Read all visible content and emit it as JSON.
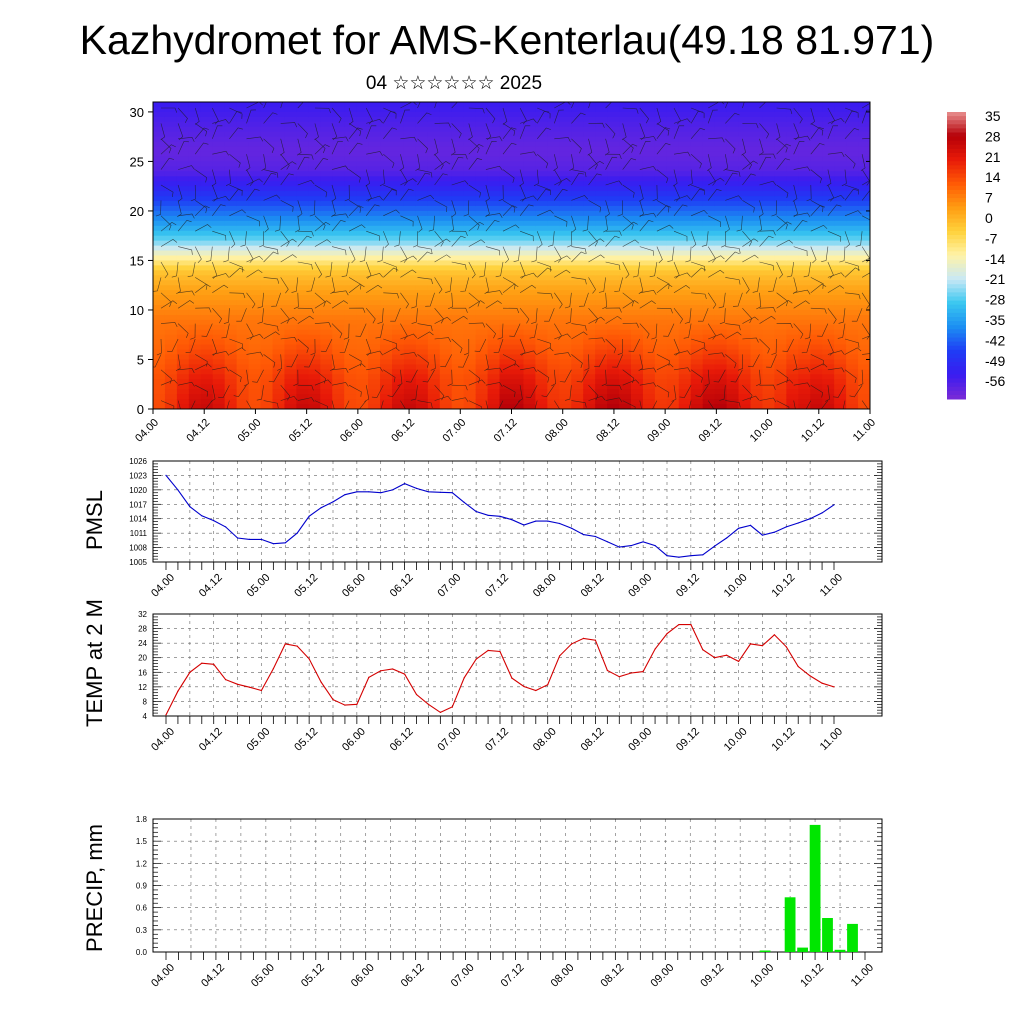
{
  "header": {
    "title": "Kazhydromet for AMS-Kenterlau(49.18 81.971)",
    "subtitle": "04 ☆☆☆☆☆☆ 2025"
  },
  "chart_data": [
    {
      "type": "heatmap",
      "name": "cross-section",
      "x_ticks": [
        "04.00",
        "04.12",
        "05.00",
        "05.12",
        "06.00",
        "06.12",
        "07.00",
        "07.12",
        "08.00",
        "08.12",
        "09.00",
        "09.12",
        "10.00",
        "10.12",
        "11.00"
      ],
      "y_ticks": [
        "0",
        "5",
        "10",
        "15",
        "20",
        "25",
        "30"
      ],
      "ylim": [
        0,
        31
      ],
      "colorbar": {
        "labels": [
          "35",
          "28",
          "21",
          "14",
          "7",
          "0",
          "-7",
          "-14",
          "-21",
          "-28",
          "-35",
          "-42",
          "-49",
          "-56"
        ],
        "range": [
          -63,
          42
        ],
        "colors": [
          "#7a2bd6",
          "#3a1cf0",
          "#1f3cf5",
          "#1c8ef2",
          "#39c7f0",
          "#c8e8f5",
          "#fff3a8",
          "#ffd23c",
          "#ff9c12",
          "#ff5a05",
          "#e81a08",
          "#b50008",
          "#e89090"
        ]
      },
      "profile": {
        "levels": [
          0,
          3,
          6,
          9,
          12,
          14,
          15.5,
          17,
          19,
          21,
          22.5,
          24,
          26,
          28,
          31
        ],
        "values": [
          24,
          21,
          16,
          12,
          6,
          0,
          -12,
          -25,
          -36,
          -45,
          -52,
          -58,
          -60,
          -58,
          -54
        ],
        "daily_amplitude": 4
      },
      "has_wind_barbs": true
    },
    {
      "type": "line",
      "name": "pmsl",
      "ylabel": "PMSL",
      "ylim": [
        1005,
        1026
      ],
      "y_ticks": [
        "1005",
        "1008",
        "1011",
        "1014",
        "1017",
        "1020",
        "1023",
        "1026"
      ],
      "x_ticks": [
        "04.00",
        "04.12",
        "05.00",
        "05.12",
        "06.00",
        "06.12",
        "07.00",
        "07.12",
        "08.00",
        "08.12",
        "09.00",
        "09.12",
        "10.00",
        "10.12",
        "11.00"
      ],
      "color": "#0000cc",
      "series": [
        {
          "x": [
            0,
            3,
            6,
            9,
            12,
            15,
            18,
            21,
            24,
            27,
            30,
            33,
            36,
            39,
            42,
            45,
            48,
            51,
            54,
            57,
            60,
            63,
            66,
            69,
            72,
            75,
            78,
            81,
            84,
            87,
            90,
            93,
            96,
            99,
            102,
            105,
            108,
            111,
            114,
            117,
            120,
            123,
            126,
            129,
            132,
            135,
            138,
            141,
            144,
            147,
            150,
            153,
            156,
            159,
            162,
            165,
            168
          ],
          "values": [
            1023,
            1020,
            1016.5,
            1014.6,
            1013.6,
            1012.3,
            1010,
            1009.7,
            1009.7,
            1008.8,
            1009,
            1011,
            1014.5,
            1016.3,
            1017.5,
            1019,
            1019.6,
            1019.6,
            1019.4,
            1020,
            1021.3,
            1020.3,
            1019.6,
            1019.5,
            1019.4,
            1017.4,
            1015.5,
            1014.7,
            1014.5,
            1013.8,
            1012.7,
            1013.5,
            1013.5,
            1013,
            1012,
            1010.7,
            1010.3,
            1009.2,
            1008.1,
            1008.4,
            1009.2,
            1008.4,
            1006.3,
            1006,
            1006.3,
            1006.5,
            1008.3,
            1010,
            1012,
            1012.6,
            1010.6,
            1011.2,
            1012.3,
            1013.1,
            1014,
            1015.2,
            1016.9
          ]
        }
      ]
    },
    {
      "type": "line",
      "name": "temp",
      "ylabel": "TEMP at 2 M",
      "ylim": [
        4,
        32
      ],
      "y_ticks": [
        "4",
        "8",
        "12",
        "16",
        "20",
        "24",
        "28",
        "32"
      ],
      "x_ticks": [
        "04.00",
        "04.12",
        "05.00",
        "05.12",
        "06.00",
        "06.12",
        "07.00",
        "07.12",
        "08.00",
        "08.12",
        "09.00",
        "09.12",
        "10.00",
        "10.12",
        "11.00"
      ],
      "color": "#d40000",
      "series": [
        {
          "x": [
            0,
            3,
            6,
            9,
            12,
            15,
            18,
            21,
            24,
            27,
            30,
            33,
            36,
            39,
            42,
            45,
            48,
            51,
            54,
            57,
            60,
            63,
            66,
            69,
            72,
            75,
            78,
            81,
            84,
            87,
            90,
            93,
            96,
            99,
            102,
            105,
            108,
            111,
            114,
            117,
            120,
            123,
            126,
            129,
            132,
            135,
            138,
            141,
            144,
            147,
            150,
            153,
            156,
            159,
            162,
            165,
            168
          ],
          "values": [
            4.3,
            10.8,
            16,
            18.5,
            18.2,
            14,
            12.7,
            11.9,
            11,
            17,
            23.8,
            23.2,
            19.7,
            13.3,
            8.5,
            7,
            7.2,
            14.6,
            16.4,
            16.9,
            15.5,
            9.9,
            7.2,
            5,
            6.5,
            14.5,
            19.6,
            22,
            21.7,
            14.4,
            12.1,
            11,
            12.6,
            20.5,
            23.8,
            25.3,
            24.8,
            16.5,
            14.8,
            15.8,
            16.2,
            22.4,
            26.6,
            29.1,
            29.1,
            22.2,
            20,
            20.7,
            19,
            23.8,
            23.3,
            26.3,
            23,
            17.6,
            15,
            13,
            12
          ]
        }
      ]
    },
    {
      "type": "bar",
      "name": "precip",
      "ylabel": "PRECIP, mm",
      "ylim": [
        0,
        1.8
      ],
      "y_ticks": [
        "0.0",
        "0.3",
        "0.6",
        "0.9",
        "1.2",
        "1.5",
        "1.8"
      ],
      "x_ticks": [
        "04.00",
        "04.12",
        "05.00",
        "05.12",
        "06.00",
        "06.12",
        "07.00",
        "07.12",
        "08.00",
        "08.12",
        "09.00",
        "09.12",
        "10.00",
        "10.12",
        "11.00"
      ],
      "color": "#00e600",
      "x": [
        144,
        150,
        153,
        156,
        159,
        162,
        165
      ],
      "values": [
        0.02,
        0.74,
        0.06,
        1.72,
        0.46,
        0.03,
        0.38
      ]
    }
  ]
}
